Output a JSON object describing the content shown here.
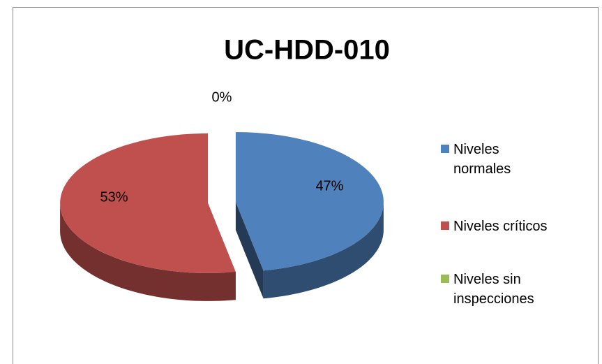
{
  "chart_data": {
    "type": "pie",
    "title": "UC-HDD-010",
    "categories": [
      "Niveles normales",
      "Niveles críticos",
      "Niveles sin inspecciones"
    ],
    "values": [
      47,
      53,
      0
    ],
    "value_labels": [
      "47%",
      "53%",
      "0%"
    ],
    "colors": [
      "#4f81bd",
      "#c0504d",
      "#9bbb59"
    ],
    "legend": "right"
  }
}
